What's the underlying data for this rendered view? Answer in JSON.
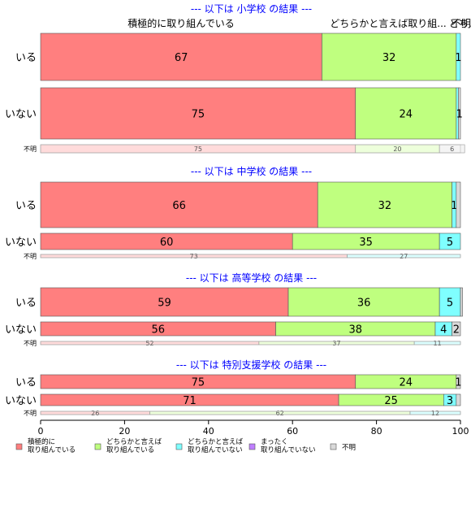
{
  "chart_data": {
    "type": "bar",
    "orientation": "horizontal",
    "stacked": true,
    "xlim": [
      0,
      100
    ],
    "x_ticks": [
      0,
      20,
      40,
      60,
      80,
      100
    ],
    "colors": [
      "#ff7f7f",
      "#bfff7f",
      "#7fffff",
      "#bf7fff",
      "#d9d9d9"
    ],
    "legend_position": "bottom-left",
    "legend": [
      {
        "lines": [
          "積極的に",
          "取り組んでいる"
        ],
        "color": "#ff7f7f"
      },
      {
        "lines": [
          "どちらかと言えば",
          "取り組んでいる"
        ],
        "color": "#bfff7f"
      },
      {
        "lines": [
          "どちらかと言えば",
          "取り組んでいない"
        ],
        "color": "#7fffff"
      },
      {
        "lines": [
          "まったく",
          "取り組んでいない"
        ],
        "color": "#bf7fff"
      },
      {
        "lines": [
          "不明"
        ],
        "color": "#d9d9d9"
      }
    ],
    "top_labels": [
      "積極的に取り組んでいる",
      "どちらかと言えば取り組...",
      "どち...",
      "不明"
    ],
    "groups": [
      {
        "title": "--- 以下は 小学校 の結果 ---",
        "rows": [
          {
            "category": "いる",
            "values": [
              67,
              32,
              1,
              0,
              0
            ],
            "labels": [
              "67",
              "32",
              "1",
              "",
              ""
            ]
          },
          {
            "category": "いない",
            "values": [
              75,
              24,
              0.5,
              0,
              0.5
            ],
            "labels": [
              "75",
              "24",
              "",
              "",
              "1"
            ]
          },
          {
            "category": "不明",
            "values": [
              75,
              20,
              0,
              0,
              6
            ],
            "labels": [
              "75",
              "20",
              "",
              "",
              "6"
            ]
          }
        ]
      },
      {
        "title": "--- 以下は 中学校 の結果 ---",
        "rows": [
          {
            "category": "いる",
            "values": [
              66,
              32,
              1,
              0,
              1
            ],
            "labels": [
              "66",
              "32",
              "1",
              "",
              ""
            ]
          },
          {
            "category": "いない",
            "values": [
              60,
              35,
              5,
              0,
              0
            ],
            "labels": [
              "60",
              "35",
              "5",
              "",
              ""
            ]
          },
          {
            "category": "不明",
            "values": [
              73,
              0,
              27,
              0,
              0
            ],
            "labels": [
              "73",
              "",
              "27",
              "",
              ""
            ]
          }
        ]
      },
      {
        "title": "--- 以下は 高等学校 の結果 ---",
        "rows": [
          {
            "category": "いる",
            "values": [
              59,
              36,
              5,
              0,
              0.5
            ],
            "labels": [
              "59",
              "36",
              "5",
              "",
              ""
            ]
          },
          {
            "category": "いない",
            "values": [
              56,
              38,
              4,
              0,
              2
            ],
            "labels": [
              "56",
              "38",
              "4",
              "",
              "2"
            ]
          },
          {
            "category": "不明",
            "values": [
              52,
              37,
              11,
              0,
              0
            ],
            "labels": [
              "52",
              "37",
              "11",
              "",
              ""
            ]
          }
        ]
      },
      {
        "title": "--- 以下は 特別支援学校 の結果 ---",
        "rows": [
          {
            "category": "いる",
            "values": [
              75,
              24,
              0,
              0,
              1
            ],
            "labels": [
              "75",
              "24",
              "",
              "",
              "1"
            ]
          },
          {
            "category": "いない",
            "values": [
              71,
              25,
              3,
              0,
              1
            ],
            "labels": [
              "71",
              "25",
              "3",
              "",
              ""
            ]
          },
          {
            "category": "不明",
            "values": [
              26,
              62,
              12,
              0,
              0
            ],
            "labels": [
              "26",
              "62",
              "12",
              "",
              ""
            ]
          }
        ]
      }
    ]
  }
}
